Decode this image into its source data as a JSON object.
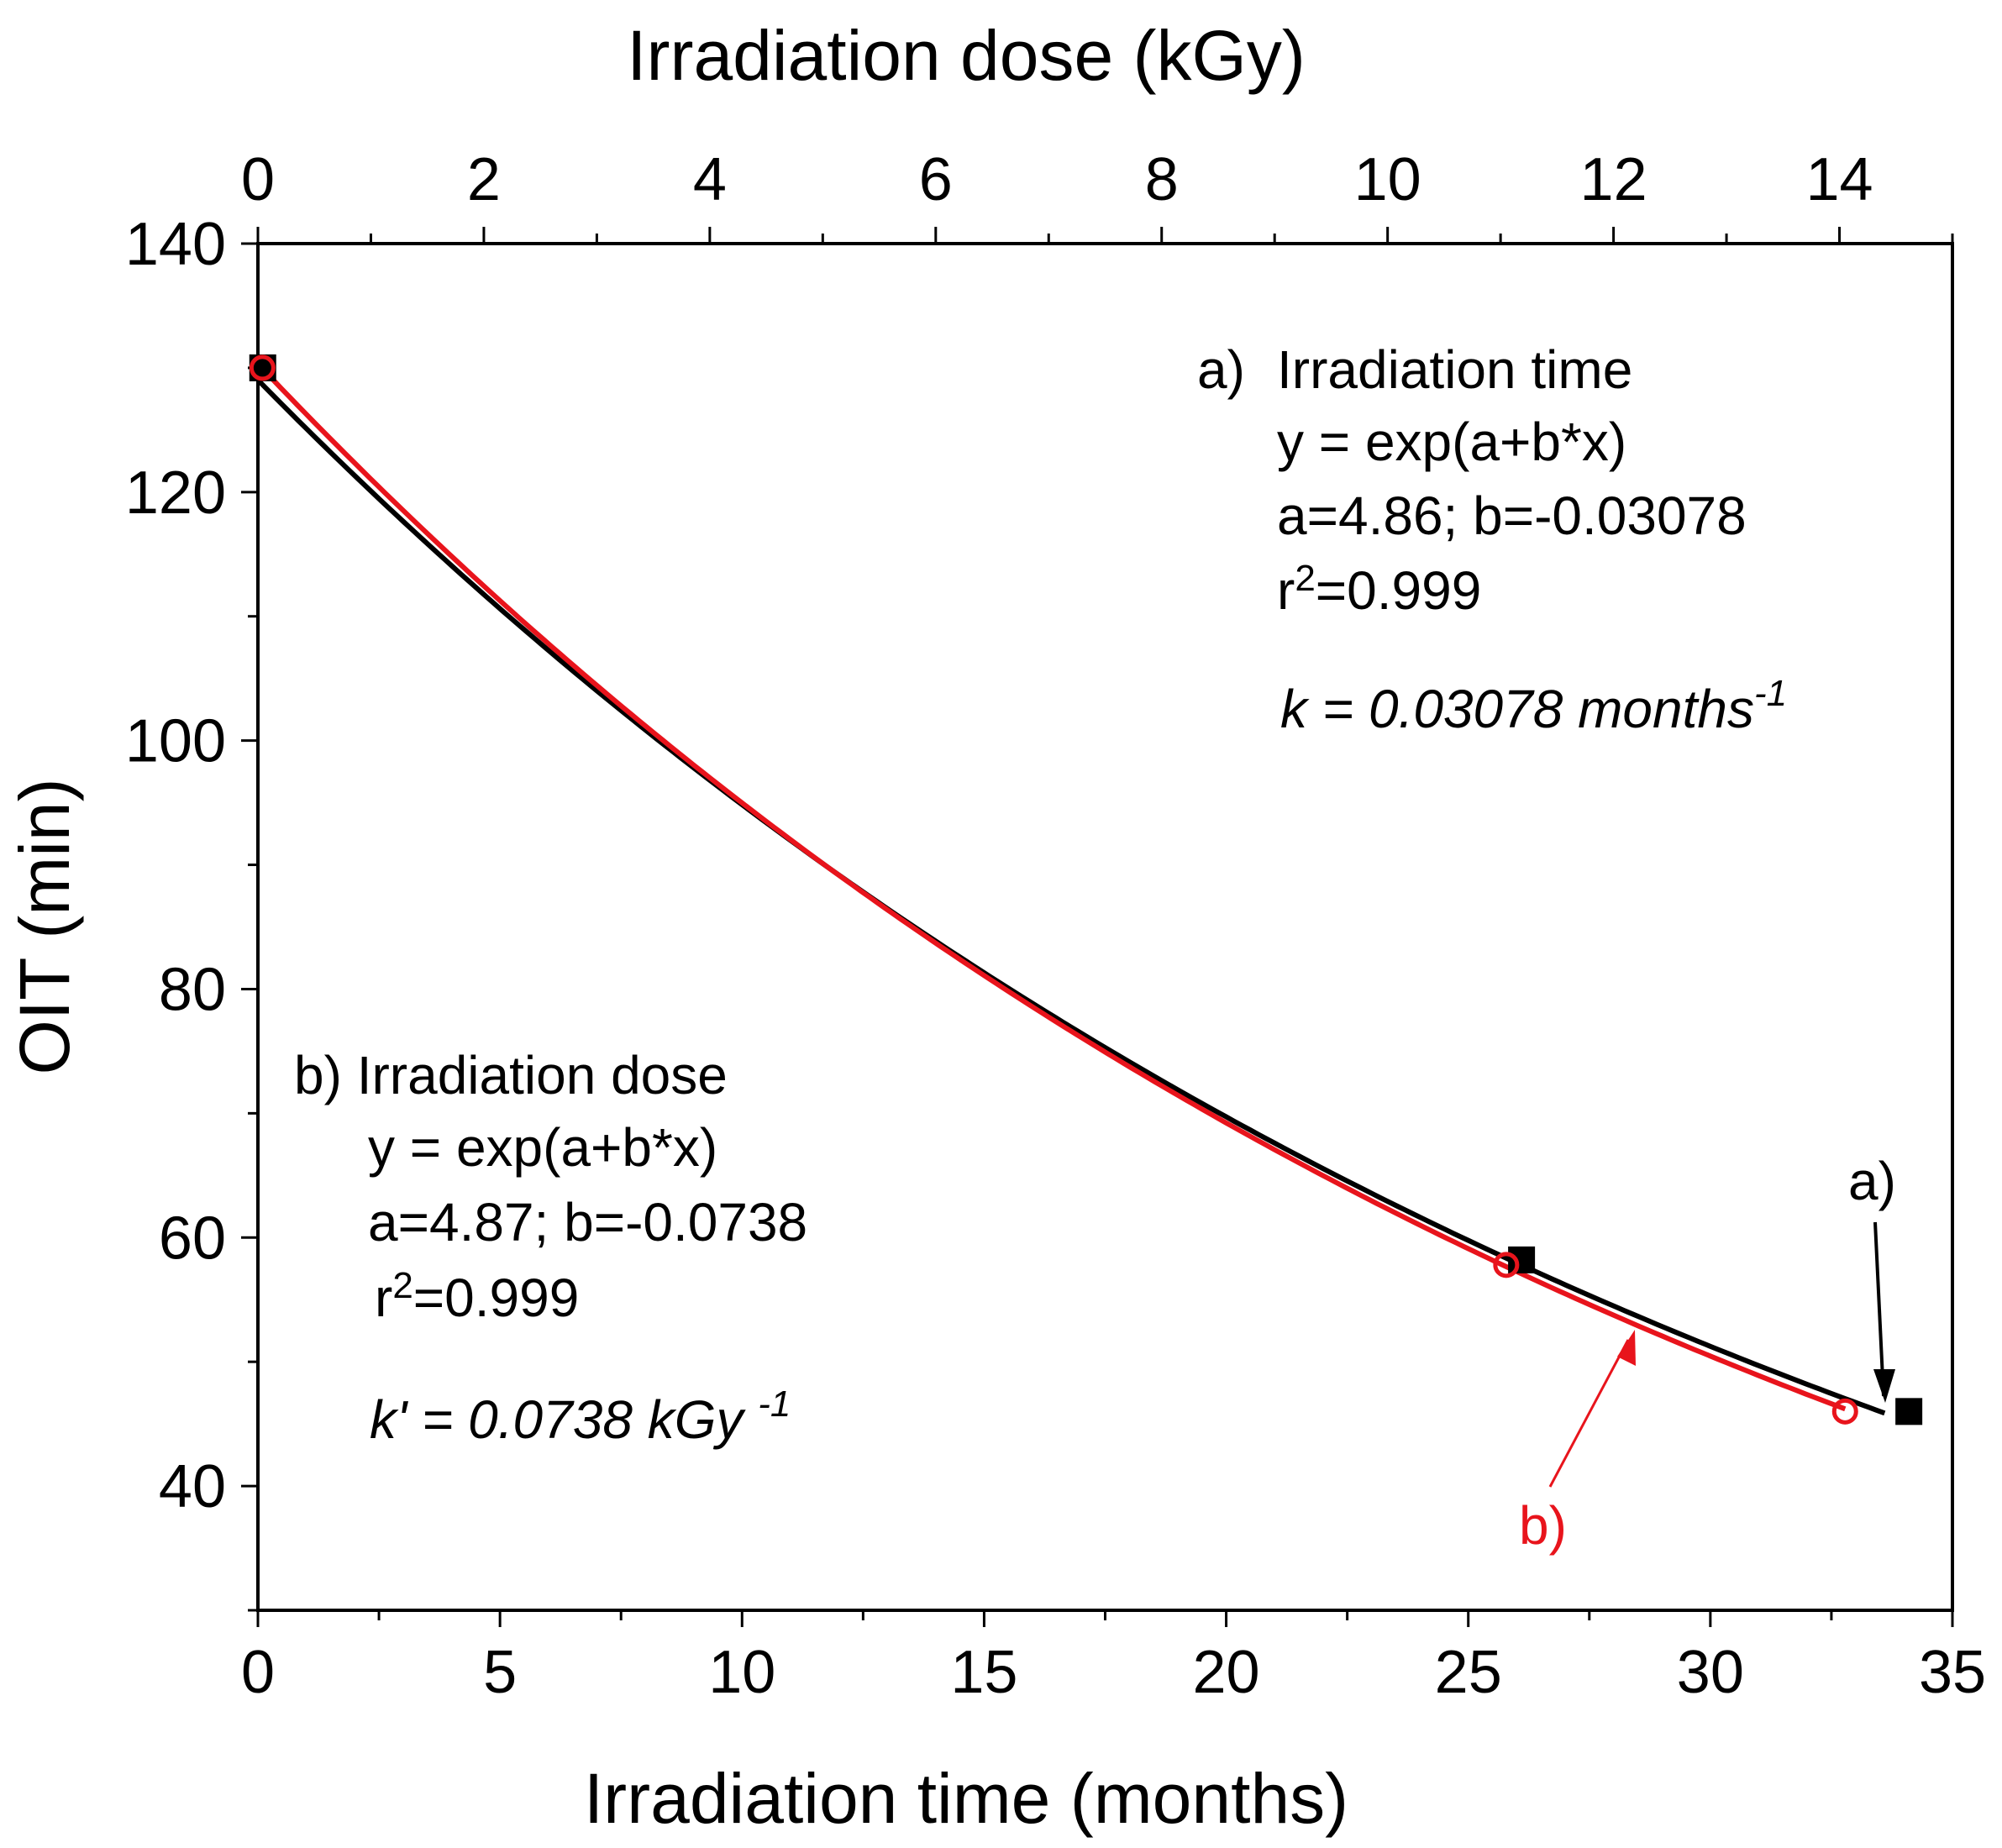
{
  "chart_data": {
    "type": "scatter",
    "title": "",
    "xlabel": "Irradiation time (months)",
    "x2label": "Irradiation dose (kGy)",
    "ylabel": "OIT (min)",
    "xlim": [
      0,
      35
    ],
    "x2lim": [
      0,
      15
    ],
    "ylim": [
      30,
      140
    ],
    "xticks": [
      0,
      5,
      10,
      15,
      20,
      25,
      30,
      35
    ],
    "x2ticks": [
      0,
      2,
      4,
      6,
      8,
      10,
      12,
      14
    ],
    "yticks": [
      40,
      60,
      80,
      100,
      120,
      140
    ],
    "series": [
      {
        "name": "a) Irradiation time",
        "color": "#000000",
        "marker": "filled-square",
        "axis": "bottom",
        "points": [
          [
            0.1,
            130
          ],
          [
            26.1,
            58.2
          ],
          [
            34.1,
            46
          ]
        ],
        "fit": {
          "a": 4.86,
          "b": -0.03078,
          "x_from": 0,
          "x_to": 33.6
        }
      },
      {
        "name": "b) Irradiation dose",
        "color": "#e8141c",
        "marker": "open-circle",
        "axis": "top",
        "points": [
          [
            0.04,
            130
          ],
          [
            11.05,
            57.8
          ],
          [
            14.05,
            46
          ]
        ],
        "fit": {
          "a": 4.87,
          "b": -0.0738,
          "x_from": 0,
          "x_to": 14.05
        }
      }
    ]
  },
  "annotations": {
    "a_title_prefix": "a)",
    "a_title": "Irradiation time",
    "a_eq": "y = exp(a+b*x)",
    "a_params": "a=4.86; b=-0.03078",
    "a_r2_r": "r",
    "a_r2_sup": "2",
    "a_r2_val": "=0.999",
    "a_k": "k = 0.03078 months",
    "a_k_sup": "-1",
    "b_title": "b) Irradiation dose",
    "b_eq": "y = exp(a+b*x)",
    "b_params": "a=4.87; b=-0.0738",
    "b_r2_r": "r",
    "b_r2_sup": "2",
    "b_r2_val": "=0.999",
    "b_k": "k' = 0.0738 kGy ",
    "b_k_sup": "-1",
    "arrow_a_label": "a)",
    "arrow_b_label": "b)"
  }
}
